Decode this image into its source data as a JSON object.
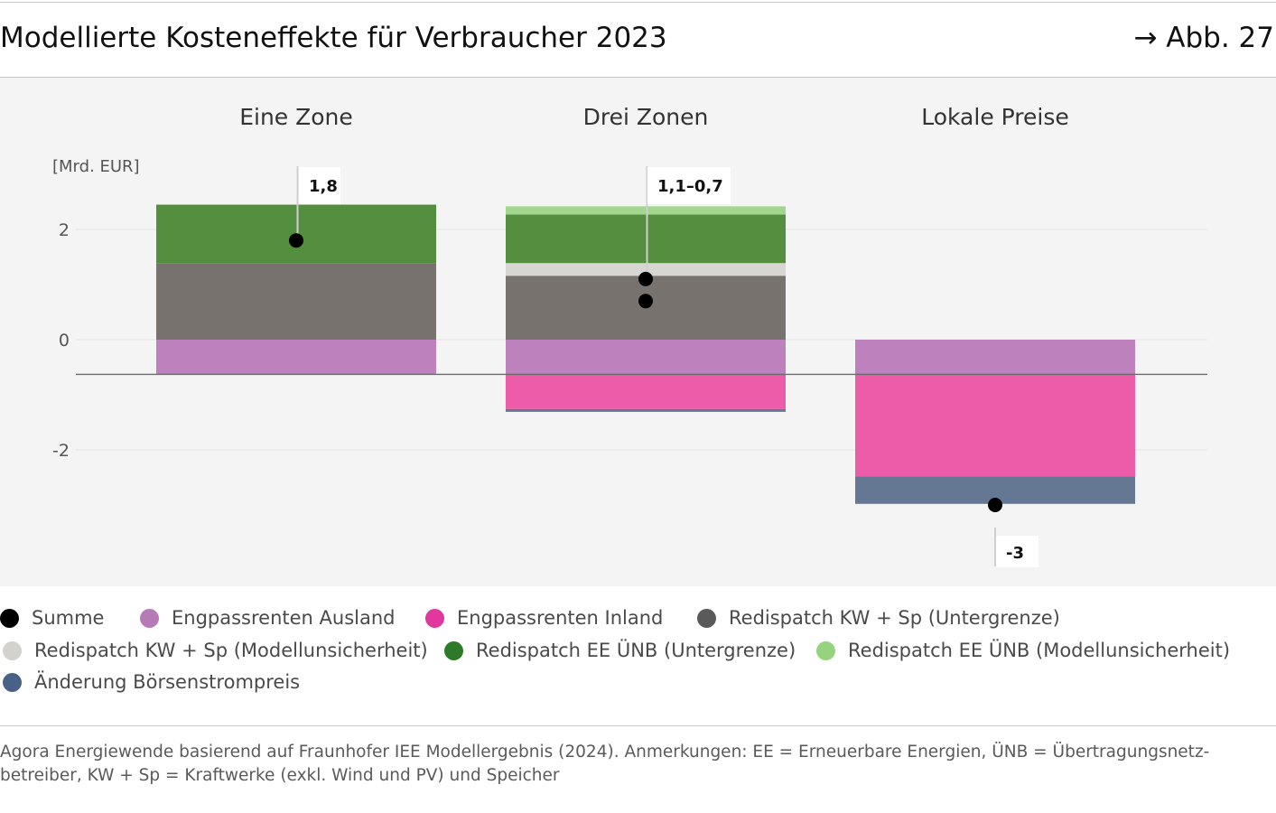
{
  "header": {
    "title": "Modellierte Kosteneffekte für Verbraucher 2023",
    "figure_ref": "→ Abb. 27"
  },
  "chart_data": {
    "type": "bar",
    "stacked": true,
    "unit_label": "[Mrd. EUR]",
    "categories": [
      "Eine Zone",
      "Drei Zonen",
      "Lokale Preise"
    ],
    "ylim": [
      -3.8,
      3.8
    ],
    "yticks": [
      2,
      0,
      -2
    ],
    "ytick_labels": [
      "2",
      "0",
      "-2"
    ],
    "reference_line": -0.63,
    "series": [
      {
        "name": "Engpassrenten Ausland",
        "color": "#bd82bd",
        "values": [
          -0.63,
          -0.63,
          -0.63
        ]
      },
      {
        "name": "Engpassrenten Inland",
        "color": "#ec5ca9",
        "values": [
          0,
          -0.63,
          -1.85
        ]
      },
      {
        "name": "Redispatch KW + Sp (Untergrenze)",
        "color": "#78726f",
        "values": [
          1.38,
          1.16,
          0
        ]
      },
      {
        "name": "Redispatch KW + Sp (Modellunsicherheit)",
        "color": "#d8d6d2",
        "values": [
          0,
          0.23,
          0
        ]
      },
      {
        "name": "Redispatch EE ÜNB (Untergrenze)",
        "color": "#548f3f",
        "values": [
          1.07,
          0.88,
          0
        ]
      },
      {
        "name": "Redispatch EE ÜNB (Modellunsicherheit)",
        "color": "#a3d790",
        "values": [
          0,
          0.15,
          0
        ]
      },
      {
        "name": "Änderung Börsenstrompreis",
        "color": "#647793",
        "values": [
          0,
          -0.05,
          -0.5
        ]
      }
    ],
    "summe": {
      "name": "Summe",
      "color": "#000000",
      "points": [
        [
          1.8
        ],
        [
          1.1,
          0.7
        ],
        [
          -3.0
        ]
      ],
      "labels": [
        "1,8",
        "1,1–0,7",
        "-3"
      ]
    }
  },
  "legend": {
    "items": [
      {
        "label": "Summe",
        "color": "#000000"
      },
      {
        "label": "Engpassrenten Ausland",
        "color": "#b67ab6"
      },
      {
        "label": "Engpassrenten Inland",
        "color": "#e0389c"
      },
      {
        "label": "Redispatch KW + Sp (Untergrenze)",
        "color": "#5a5a5a"
      },
      {
        "label": "Redispatch KW + Sp (Modellunsicherheit)",
        "color": "#d4d2cd"
      },
      {
        "label": "Redispatch EE ÜNB (Untergrenze)",
        "color": "#2f7a2a"
      },
      {
        "label": "Redispatch EE ÜNB (Modellunsicherheit)",
        "color": "#95d37f"
      },
      {
        "label": "Änderung Börsenstrompreis",
        "color": "#4a6187"
      }
    ]
  },
  "footnote": "Agora Energiewende basierend auf Fraunhofer IEE Modellergebnis (2024). Anmerkungen: EE = Erneuerbare Energien, ÜNB = Übertragungsnetz-betreiber, KW + Sp = Kraftwerke (exkl. Wind und PV) und Speicher"
}
